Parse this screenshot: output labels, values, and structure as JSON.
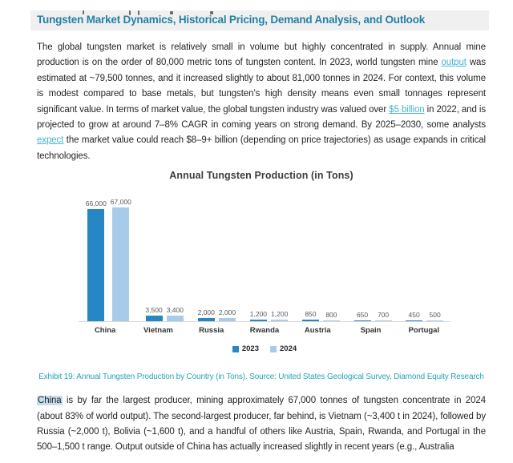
{
  "document": {
    "heading": "Tungsten Market Dynamics, Historical Pricing, Demand Analysis, and Outlook",
    "paragraph_market_overview": [
      {
        "type": "text",
        "text": "The global tungsten market is relatively small in volume but highly concentrated in supply. Annual mine production is on the order of 80,000 metric tons of tungsten content. In 2023, world tungsten mine "
      },
      {
        "type": "link",
        "text": "output"
      },
      {
        "type": "text",
        "text": " was estimated at ~79,500 tonnes, and it increased slightly to about 81,000 tonnes in 2024. For context, this volume is modest compared to base metals, but tungsten’s high density means even small tonnages represent significant value. In terms of market value, the global tungsten industry was valued over "
      },
      {
        "type": "link",
        "text": "$5 billion"
      },
      {
        "type": "text",
        "text": " in 2022, and is projected to grow at around 7–8% CAGR in coming years on strong demand. By 2025–2030, some analysts "
      },
      {
        "type": "link",
        "text": "expect"
      },
      {
        "type": "text",
        "text": " the market value could reach $8–9+ billion (depending on price trajectories) as usage expands in critical technologies."
      }
    ],
    "exhibit_caption": "Exhibit 19: Annual Tungsten Production by Country (in Tons). Source: United States Geological Survey, Diamond Equity Research",
    "paragraph_producers": [
      {
        "type": "highlight",
        "text": "China"
      },
      {
        "type": "text",
        "text": " is by far the largest producer, mining approximately 67,000 tonnes of tungsten concentrate in 2024 (about 83% of world output). The second-largest producer, far behind, is Vietnam (~3,400 t in 2024), followed by Russia (~2,000 t), Bolivia (~1,600 t), and a handful of others like Austria, Spain, Rwanda, and Portugal in the 500–1,500 t range. Output outside of China has actually increased slightly in recent years (e.g., Australia"
      }
    ]
  },
  "chart_data": {
    "type": "bar",
    "title": "Annual Tungsten Production (in Tons)",
    "categories": [
      "China",
      "Vietnam",
      "Russia",
      "Rwanda",
      "Austria",
      "Spain",
      "Portugal"
    ],
    "series": [
      {
        "name": "2023",
        "color": "#2787c4",
        "values": [
          66000,
          3500,
          2000,
          1200,
          850,
          650,
          450
        ],
        "labels": [
          "66,000",
          "3,500",
          "2,000",
          "1,200",
          "850",
          "650",
          "450"
        ]
      },
      {
        "name": "2024",
        "color": "#a7cbe9",
        "values": [
          67000,
          3400,
          2000,
          1200,
          800,
          700,
          500
        ],
        "labels": [
          "67,000",
          "3,400",
          "2,000",
          "1,200",
          "800",
          "700",
          "500"
        ]
      }
    ],
    "ylim": [
      0,
      70000
    ],
    "grid": false,
    "value_labels": true,
    "legend_position": "bottom",
    "xlabel": "",
    "ylabel": ""
  },
  "colors": {
    "heading": "#2580a5",
    "heading_bg": "#f0f0f0",
    "link": "#47b4cf",
    "caption": "#2aa3b8",
    "body_text": "#262626",
    "highlight_bg": "#c4def0",
    "bar_2023": "#2787c4",
    "bar_2024": "#a7cbe9",
    "axis_line": "#d9d9d9"
  }
}
